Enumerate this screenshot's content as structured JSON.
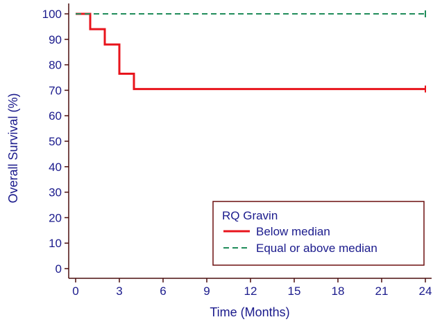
{
  "chart_data": {
    "type": "line",
    "step": true,
    "xlabel": "Time (Months)",
    "ylabel": "Overall Survival (%)",
    "xlim": [
      0,
      24
    ],
    "ylim": [
      0,
      100
    ],
    "xticks": [
      0,
      3,
      6,
      9,
      12,
      15,
      18,
      21,
      24
    ],
    "yticks": [
      0,
      10,
      20,
      30,
      40,
      50,
      60,
      70,
      80,
      90,
      100
    ],
    "grid": false,
    "legend": {
      "title": "RQ Gravin",
      "position": "bottom-right"
    },
    "series": [
      {
        "name": "Below median",
        "color": "#e8141c",
        "dash": "solid",
        "x": [
          0,
          1,
          1,
          2,
          2,
          3,
          3,
          4,
          4,
          24
        ],
        "y": [
          100,
          100,
          94,
          94,
          88,
          88,
          76.5,
          76.5,
          70.5,
          70.5
        ]
      },
      {
        "name": "Equal or above median",
        "color": "#1f8c5a",
        "dash": "dashed",
        "x": [
          0,
          24
        ],
        "y": [
          100,
          100
        ]
      }
    ],
    "colors": {
      "axis": "#4a0d0d",
      "text": "#1a1a8c",
      "legend_border": "#6b0f0f"
    }
  }
}
